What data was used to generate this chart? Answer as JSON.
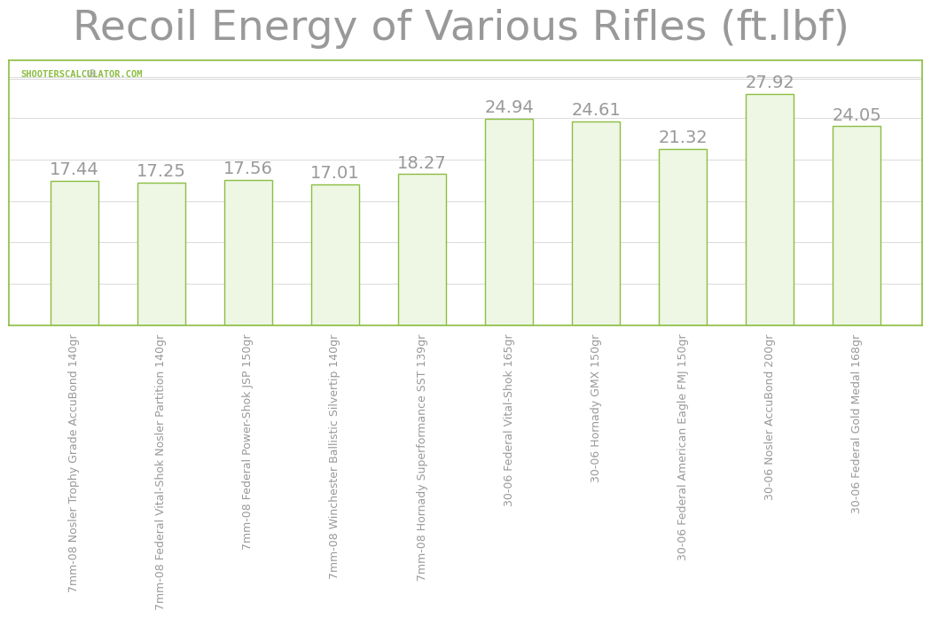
{
  "title": "Recoil Energy of Various Rifles (ft.lbf)",
  "categories": [
    "7mm-08 Nosler Trophy Grade AccuBond 140gr",
    "7mm-08 Federal Vital-Shok Nosler Partition 140gr",
    "7mm-08 Federal Power-Shok JSP 150gr",
    "7mm-08 Winchester Ballistic Silvertip 140gr",
    "7mm-08 Hornady Superformance SST 139gr",
    "30-06 Federal Vital-Shok 165gr",
    "30-06 Hornady GMX 150gr",
    "30-06 Federal American Eagle FMJ 150gr",
    "30-06 Nosler AccuBond 200gr",
    "30-06 Federal Gold Medal 168gr"
  ],
  "values": [
    17.44,
    17.25,
    17.56,
    17.01,
    18.27,
    24.94,
    24.61,
    21.32,
    27.92,
    24.05
  ],
  "bar_color": "#eef6e4",
  "bar_edge_color": "#8bbe42",
  "title_color": "#999999",
  "label_color": "#999999",
  "watermark": "SHOOTERSCALCULATOR.COM",
  "watermark_color": "#8bbe42",
  "background_color": "#ffffff",
  "plot_bg_color": "#ffffff",
  "grid_color": "#dddddd",
  "border_color": "#8bbe42",
  "ylim": [
    0,
    32
  ],
  "title_fontsize": 34,
  "bar_label_fontsize": 14,
  "tick_label_fontsize": 9,
  "bar_width": 0.55
}
